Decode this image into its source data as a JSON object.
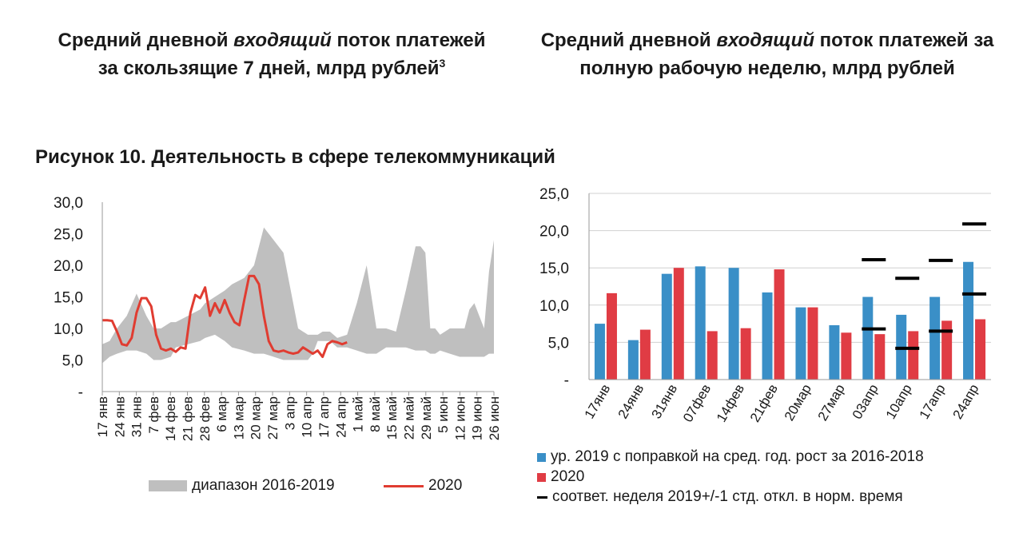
{
  "titles": {
    "left": {
      "pre": "Средний дневной ",
      "em": "входящий",
      "post": " поток платежей за скользящие 7 дней, млрд рублей",
      "sup": "3"
    },
    "right": {
      "pre": "Средний дневной ",
      "em": "входящий",
      "post": " поток платежей за полную рабочую неделю, млрд рублей"
    }
  },
  "figure_caption": "Рисунок 10. Деятельность в сфере телекоммуникаций",
  "colors": {
    "range": "#bfbfbf",
    "line2020": "#e03c31",
    "bar2019": "#3a8fc7",
    "bar2020": "#e03c44",
    "std": "#000000"
  },
  "chart_data": [
    {
      "type": "area",
      "title": "",
      "yticks": [
        "-",
        "5,0",
        "10,0",
        "15,0",
        "20,0",
        "25,0",
        "30,0"
      ],
      "ylim": [
        0,
        30
      ],
      "x_day_range": [
        0,
        160
      ],
      "categories": [
        "17 янв",
        "24 янв",
        "31 янв",
        "7 фев",
        "14 фев",
        "21 фев",
        "28 фев",
        "6 мар",
        "13 мар",
        "20 мар",
        "27 мар",
        "3 апр",
        "10 апр",
        "17 апр",
        "24 апр",
        "1 май",
        "8 май",
        "15 май",
        "22 май",
        "29 май",
        "5 июн",
        "12 июн",
        "19 июн",
        "26 июн"
      ],
      "series": [
        {
          "name": "диапазон 2016-2019",
          "x": [
            0,
            3,
            6,
            10,
            14,
            18,
            21,
            24,
            28,
            30,
            35,
            40,
            42,
            46,
            50,
            53,
            58,
            62,
            66,
            70,
            74,
            77,
            80,
            82,
            84,
            86,
            88,
            90,
            93,
            96,
            100,
            104,
            108,
            112,
            116,
            120,
            124,
            128,
            130,
            132,
            134,
            136,
            138,
            142,
            146,
            148,
            150,
            152,
            154,
            156,
            158,
            160
          ],
          "low": [
            4.5,
            5.5,
            6,
            6.5,
            6.5,
            6,
            5,
            5,
            5.5,
            7,
            7.5,
            8,
            8.5,
            9,
            8,
            7,
            6.5,
            6,
            6,
            5.5,
            5,
            5,
            5,
            5,
            5,
            6,
            8,
            8,
            8,
            7,
            7,
            6.5,
            6,
            6,
            7,
            7,
            7,
            6.5,
            6.5,
            6.5,
            6,
            6,
            6.5,
            6,
            5.5,
            5.5,
            5.5,
            5.5,
            5.5,
            5.5,
            6,
            6
          ],
          "high": [
            7.5,
            8,
            10,
            12,
            15.5,
            12,
            10,
            10,
            11,
            11,
            12,
            13,
            14,
            15,
            16,
            17,
            18,
            20,
            26,
            24,
            22,
            16,
            10,
            9.5,
            9,
            9,
            9,
            9.5,
            9.5,
            8.5,
            9,
            14,
            20,
            10,
            10,
            9.5,
            16,
            23,
            23,
            22,
            10,
            10,
            9,
            10,
            10,
            10,
            13,
            14,
            12,
            10,
            19,
            24
          ]
        },
        {
          "name": "2020",
          "x": [
            0,
            2,
            4,
            6,
            8,
            10,
            12,
            14,
            16,
            18,
            20,
            22,
            24,
            26,
            28,
            30,
            32,
            34,
            36,
            38,
            40,
            42,
            44,
            46,
            48,
            50,
            52,
            54,
            56,
            58,
            60,
            62,
            64,
            66,
            68,
            70,
            72,
            74,
            76,
            78,
            80,
            82,
            84,
            86,
            88,
            90,
            92,
            94,
            96,
            98,
            100
          ],
          "values": [
            11.3,
            11.3,
            11.2,
            9.5,
            7.5,
            7.3,
            8.5,
            12.5,
            14.8,
            14.8,
            13.5,
            9,
            6.8,
            6.5,
            6.8,
            6.3,
            7,
            6.8,
            12.5,
            15.3,
            14.8,
            16.5,
            12,
            14,
            12.5,
            14.5,
            12.5,
            11,
            10.5,
            14.5,
            18.3,
            18.3,
            17,
            12,
            8,
            6.5,
            6.3,
            6.5,
            6.2,
            6,
            6.2,
            7,
            6.5,
            6,
            6.5,
            5.5,
            7.5,
            8,
            7.8,
            7.5,
            7.8
          ]
        }
      ]
    },
    {
      "type": "bar",
      "title": "",
      "yticks": [
        "-",
        "5,0",
        "10,0",
        "15,0",
        "20,0",
        "25,0"
      ],
      "ylim": [
        0,
        25
      ],
      "categories": [
        "17янв",
        "24янв",
        "31янв",
        "07фев",
        "14фев",
        "21фев",
        "20мар",
        "27мар",
        "03апр",
        "10апр",
        "17апр",
        "24апр"
      ],
      "series": [
        {
          "name": "ур. 2019 с поправкой на сред. год. рост за 2016-2018",
          "values": [
            7.5,
            5.3,
            14.2,
            15.2,
            15.0,
            11.7,
            9.7,
            7.3,
            11.1,
            8.7,
            11.1,
            15.8
          ]
        },
        {
          "name": "2020",
          "values": [
            11.6,
            6.7,
            15.0,
            6.5,
            6.9,
            14.8,
            9.7,
            6.3,
            6.1,
            6.5,
            7.9,
            8.1
          ]
        },
        {
          "name": "соответ. неделя 2019+/-1 стд. откл. в норм. время",
          "low": [
            null,
            null,
            null,
            null,
            null,
            null,
            null,
            null,
            6.8,
            4.2,
            6.5,
            11.5
          ],
          "high": [
            null,
            null,
            null,
            null,
            null,
            null,
            null,
            null,
            16.1,
            13.6,
            16.0,
            20.9
          ]
        }
      ]
    }
  ]
}
